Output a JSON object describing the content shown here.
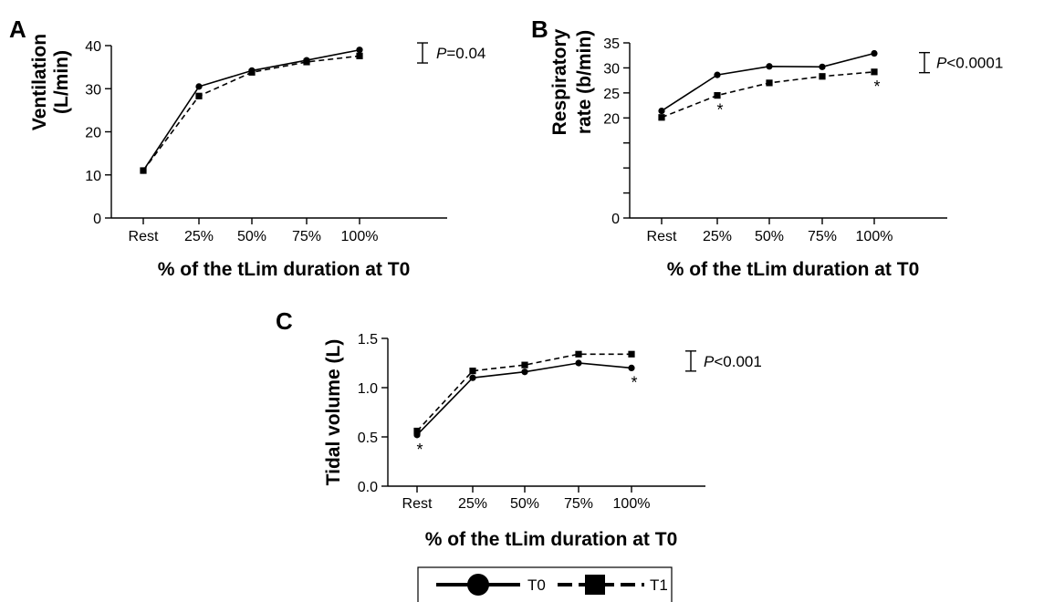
{
  "legend": {
    "entries": [
      "T0",
      "T1"
    ]
  },
  "chart_data": [
    {
      "type": "line",
      "panel": "A",
      "ylabel": [
        "Ventilation",
        "(L/min)"
      ],
      "xlabel": "% of the tLim duration at T0",
      "categories": [
        "Rest",
        "25%",
        "50%",
        "75%",
        "100%"
      ],
      "ylim": [
        0,
        40
      ],
      "yticks": [
        0,
        10,
        20,
        30,
        40
      ],
      "series": [
        {
          "name": "T0",
          "values": [
            11,
            30.5,
            34.2,
            36.6,
            39
          ]
        },
        {
          "name": "T1",
          "values": [
            11,
            28.3,
            33.8,
            36.2,
            37.6
          ]
        }
      ],
      "significance": {
        "italic": "P",
        "rest": "=0.04"
      },
      "asterisks": []
    },
    {
      "type": "line",
      "panel": "B",
      "ylabel": [
        "Respiratory",
        "rate (b/min)"
      ],
      "xlabel": "% of the tLim duration at T0",
      "categories": [
        "Rest",
        "25%",
        "50%",
        "75%",
        "100%"
      ],
      "ylim": [
        0,
        35
      ],
      "yticks": [
        0,
        5,
        10,
        15,
        20,
        25,
        30,
        35
      ],
      "yticklabels": [
        "0",
        "",
        "",
        "",
        "20",
        "25",
        "30",
        "35"
      ],
      "series": [
        {
          "name": "T0",
          "values": [
            21.4,
            28.6,
            30.3,
            30.2,
            32.9
          ]
        },
        {
          "name": "T1",
          "values": [
            20.1,
            24.5,
            27,
            28.3,
            29.2
          ]
        }
      ],
      "significance": {
        "italic": "P",
        "rest": "<0.0001"
      },
      "asterisks": [
        {
          "index": 1,
          "series": "T1",
          "text": "*"
        },
        {
          "index": 4,
          "series": "T1",
          "text": "*"
        }
      ]
    },
    {
      "type": "line",
      "panel": "C",
      "ylabel": [
        "Tidal volume (L)"
      ],
      "xlabel": "% of the tLim duration at T0",
      "categories": [
        "Rest",
        "25%",
        "50%",
        "75%",
        "100%"
      ],
      "ylim": [
        0,
        1.5
      ],
      "yticks": [
        0,
        0.5,
        1.0,
        1.5
      ],
      "yticklabels": [
        "0.0",
        "0.5",
        "1.0",
        "1.5"
      ],
      "series": [
        {
          "name": "T0",
          "values": [
            0.52,
            1.1,
            1.16,
            1.25,
            1.2
          ]
        },
        {
          "name": "T1",
          "values": [
            0.56,
            1.17,
            1.23,
            1.34,
            1.34
          ]
        }
      ],
      "significance": {
        "italic": "P",
        "rest": "<0.001"
      },
      "asterisks": [
        {
          "index": 0,
          "series": "T0",
          "text": "*"
        },
        {
          "index": 4,
          "series": "T0",
          "text": "*"
        }
      ]
    }
  ]
}
